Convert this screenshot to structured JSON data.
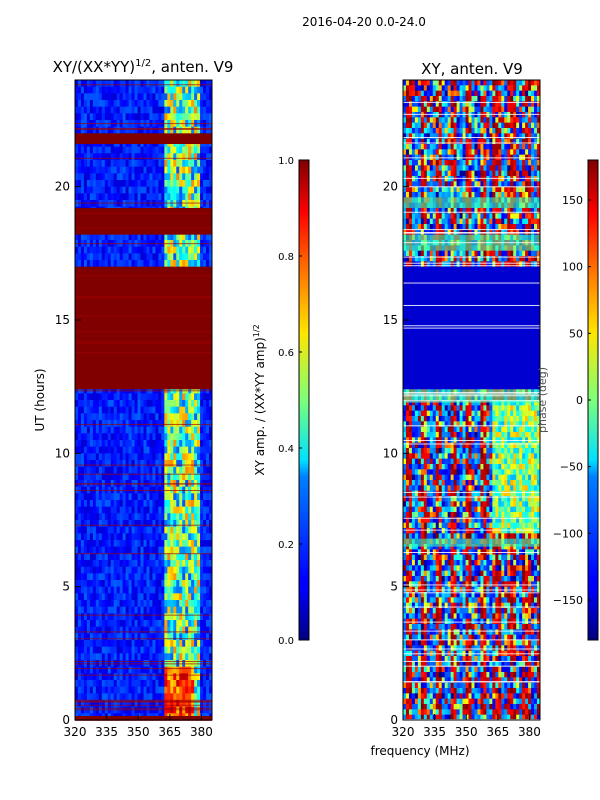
{
  "suptitle": "2016-04-20 0.0-24.0",
  "xlabel_shared": "frequency (MHz)",
  "chart_data": [
    {
      "type": "heatmap",
      "title_main": "XY/(XX*YY)",
      "title_sup": "1/2",
      "title_tail": ", anten. V9",
      "ylabel": "UT (hours)",
      "xlim": [
        320,
        385
      ],
      "ylim": [
        0,
        24
      ],
      "xticks": [
        320,
        335,
        350,
        365,
        380
      ],
      "yticks": [
        0,
        5,
        10,
        15,
        20
      ],
      "colorscale": "jet",
      "masked_bands_hours": [
        [
          0,
          0.15
        ],
        [
          12.4,
          17
        ],
        [
          18.2,
          19.2
        ],
        [
          21.6,
          22
        ]
      ],
      "colorbar": {
        "label_main": "XY amp. / (XX*YY amp)",
        "label_sup": "1/2",
        "range": [
          0.0,
          1.0
        ],
        "ticks": [
          "0.0",
          "0.2",
          "0.4",
          "0.6",
          "0.8",
          "1.0"
        ]
      }
    },
    {
      "type": "heatmap",
      "title": "XY, anten. V9",
      "xlim": [
        320,
        385
      ],
      "ylim": [
        0,
        24
      ],
      "xticks": [
        320,
        335,
        350,
        365,
        380
      ],
      "yticks": [
        0,
        5,
        10,
        15,
        20
      ],
      "colorscale": "jet",
      "colorbar": {
        "label": "phase (deg)",
        "range": [
          -180,
          180
        ],
        "ticks": [
          "150",
          "100",
          "50",
          "0",
          "−50",
          "−100",
          "−150"
        ],
        "tick_values": [
          150,
          100,
          50,
          0,
          -50,
          -100,
          -150
        ]
      }
    }
  ]
}
